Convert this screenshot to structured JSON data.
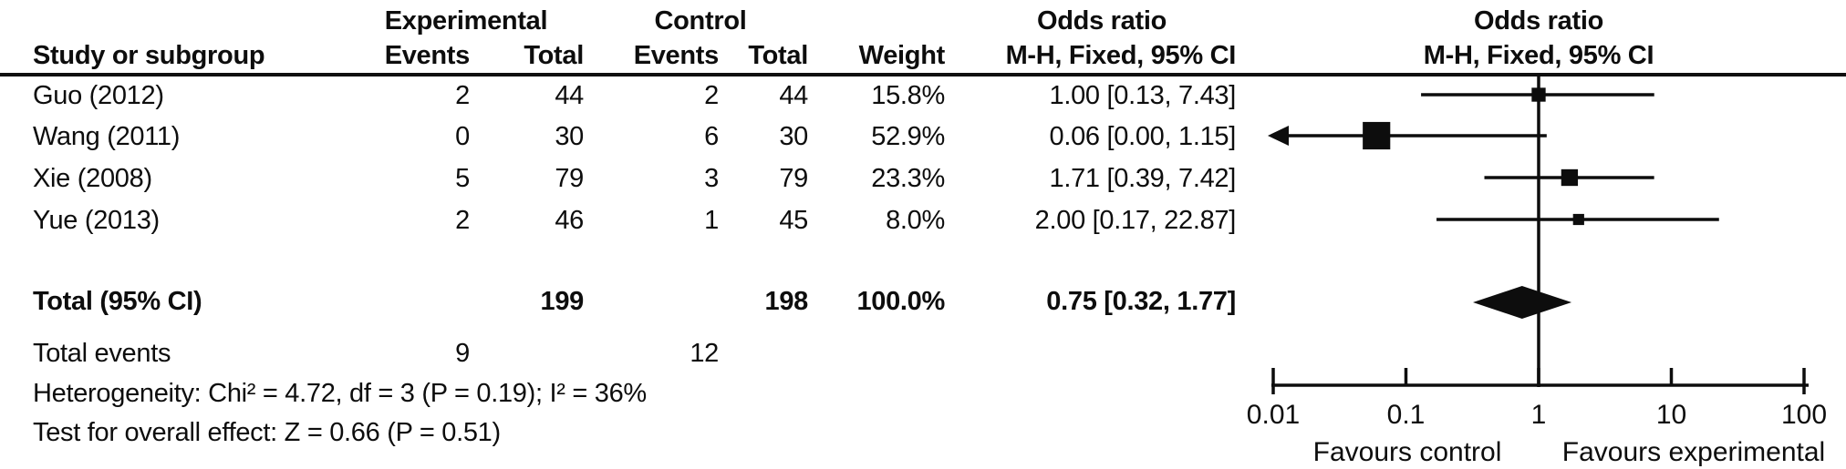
{
  "table": {
    "group_headers": {
      "experimental": "Experimental",
      "control": "Control",
      "odds_ratio": "Odds ratio",
      "odds_ratio_plot": "Odds ratio"
    },
    "headers": {
      "study": "Study or subgroup",
      "events_exp": "Events",
      "total_exp": "Total",
      "events_ctl": "Events",
      "total_ctl": "Total",
      "weight": "Weight",
      "mh_ci": "M-H, Fixed, 95% CI",
      "mh_ci_plot": "M-H, Fixed, 95% CI"
    },
    "rows": [
      {
        "study": "Guo (2012)",
        "e_events": "2",
        "e_total": "44",
        "c_events": "2",
        "c_total": "44",
        "weight": "15.8%",
        "or_ci": "1.00 [0.13, 7.43]"
      },
      {
        "study": "Wang (2011)",
        "e_events": "0",
        "e_total": "30",
        "c_events": "6",
        "c_total": "30",
        "weight": "52.9%",
        "or_ci": "0.06 [0.00, 1.15]"
      },
      {
        "study": "Xie (2008)",
        "e_events": "5",
        "e_total": "79",
        "c_events": "3",
        "c_total": "79",
        "weight": "23.3%",
        "or_ci": "1.71 [0.39, 7.42]"
      },
      {
        "study": "Yue (2013)",
        "e_events": "2",
        "e_total": "46",
        "c_events": "1",
        "c_total": "45",
        "weight": "8.0%",
        "or_ci": "2.00 [0.17, 22.87]"
      }
    ],
    "total_row": {
      "label": "Total (95% CI)",
      "e_total": "199",
      "c_total": "198",
      "weight": "100.0%",
      "or_ci": "0.75 [0.32, 1.77]"
    },
    "total_events": {
      "label": "Total events",
      "experimental": "9",
      "control": "12"
    },
    "heterogeneity": "Heterogeneity: Chi² = 4.72, df = 3 (P = 0.19); I² = 36%",
    "overall_effect": "Test for overall effect: Z = 0.66 (P = 0.51)"
  },
  "chart_data": {
    "type": "forest",
    "effect_measure": "Odds ratio, M-H, Fixed, 95% CI",
    "scale": "log10",
    "axis": {
      "min": 0.01,
      "max": 100,
      "ticks": [
        0.01,
        0.1,
        1,
        10,
        100
      ],
      "tick_labels": [
        "0.01",
        "0.1",
        "1",
        "10",
        "100"
      ]
    },
    "x_axis_labels": {
      "left": "Favours control",
      "right": "Favours experimental"
    },
    "studies": [
      {
        "name": "Guo (2012)",
        "or": 1.0,
        "ci_low": 0.13,
        "ci_high": 7.43,
        "weight_pct": 15.8
      },
      {
        "name": "Wang (2011)",
        "or": 0.06,
        "ci_low": 0.0,
        "ci_high": 1.15,
        "weight_pct": 52.9
      },
      {
        "name": "Xie (2008)",
        "or": 1.71,
        "ci_low": 0.39,
        "ci_high": 7.42,
        "weight_pct": 23.3
      },
      {
        "name": "Yue (2013)",
        "or": 2.0,
        "ci_low": 0.17,
        "ci_high": 22.87,
        "weight_pct": 8.0
      }
    ],
    "total": {
      "or": 0.75,
      "ci_low": 0.32,
      "ci_high": 1.77
    },
    "plot_colors": {
      "marker": "#0d0d0d",
      "line": "#0d0d0d"
    }
  }
}
